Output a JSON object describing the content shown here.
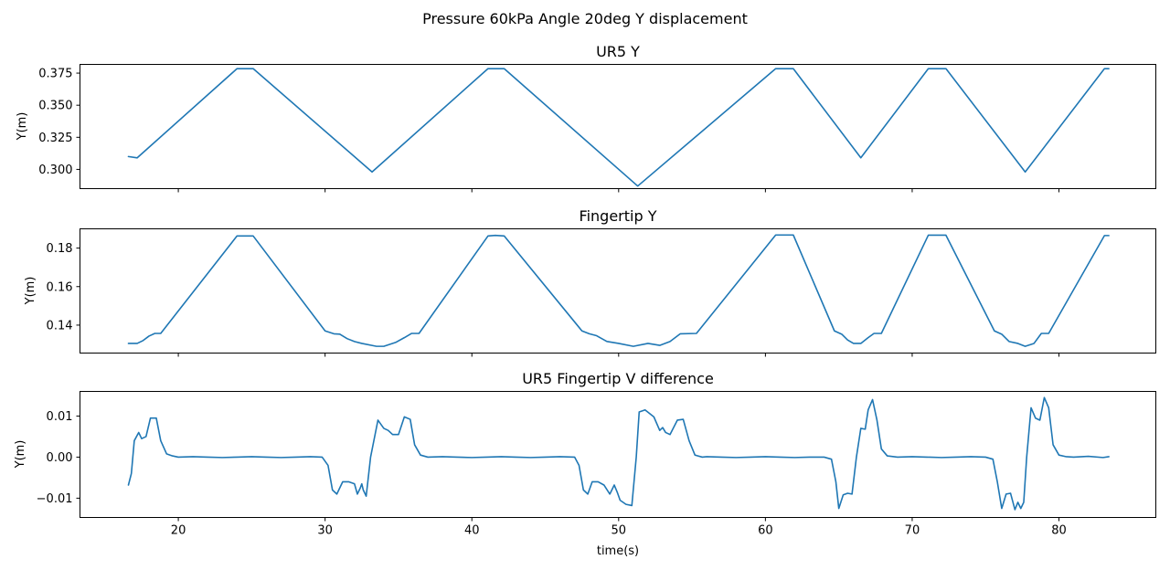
{
  "figure": {
    "title": "Pressure 60kPa Angle 20deg Y displacement",
    "xlabel": "time(s)",
    "x_ticks": [
      20,
      30,
      40,
      50,
      60,
      70,
      80
    ],
    "x_range": [
      13.3,
      86.6
    ],
    "shared_x": true,
    "grid": false,
    "line_color": "#1f77b4"
  },
  "chart_data": [
    {
      "type": "line",
      "title": "UR5 Y",
      "xlabel": "",
      "ylabel": "Y(m)",
      "ylim": [
        0.285,
        0.3818
      ],
      "yticks": [
        0.3,
        0.325,
        0.35,
        0.375
      ],
      "ytick_labels": [
        "0.300",
        "0.325",
        "0.350",
        "0.375"
      ],
      "series": [
        {
          "color": "#1f77b4",
          "x": [
            16.6,
            17.2,
            24.0,
            25.1,
            33.2,
            41.1,
            42.2,
            51.3,
            60.7,
            61.9,
            66.5,
            71.1,
            72.3,
            77.7,
            83.1,
            83.4
          ],
          "y": [
            0.31,
            0.309,
            0.3785,
            0.3785,
            0.298,
            0.3785,
            0.3785,
            0.287,
            0.3785,
            0.3785,
            0.309,
            0.3785,
            0.3785,
            0.298,
            0.3785,
            0.3785
          ]
        }
      ]
    },
    {
      "type": "line",
      "title": "Fingertip Y",
      "xlabel": "",
      "ylabel": "Y(m)",
      "ylim": [
        0.1255,
        0.19
      ],
      "yticks": [
        0.14,
        0.16,
        0.18
      ],
      "ytick_labels": [
        "0.14",
        "0.16",
        "0.18"
      ],
      "series": [
        {
          "color": "#1f77b4",
          "x": [
            16.6,
            17.2,
            17.6,
            18.0,
            18.4,
            18.8,
            24.0,
            25.1,
            30.0,
            30.6,
            31.0,
            31.5,
            32.0,
            32.5,
            33.5,
            34.0,
            34.8,
            35.4,
            35.9,
            36.4,
            41.1,
            41.6,
            42.2,
            47.5,
            48.0,
            48.5,
            49.2,
            50.0,
            51.0,
            52.0,
            52.8,
            53.5,
            54.2,
            55.3,
            60.7,
            61.9,
            64.7,
            65.2,
            65.6,
            66.0,
            66.5,
            67.0,
            67.4,
            67.9,
            71.1,
            72.3,
            75.6,
            76.1,
            76.6,
            77.2,
            77.7,
            78.3,
            78.8,
            79.3,
            83.1,
            83.4
          ],
          "y": [
            0.1305,
            0.1305,
            0.132,
            0.1343,
            0.1357,
            0.1357,
            0.1863,
            0.1863,
            0.137,
            0.1355,
            0.1353,
            0.133,
            0.1315,
            0.1305,
            0.129,
            0.129,
            0.131,
            0.1335,
            0.1357,
            0.1357,
            0.1863,
            0.1866,
            0.1863,
            0.137,
            0.1355,
            0.1345,
            0.1315,
            0.1305,
            0.129,
            0.1305,
            0.1295,
            0.1315,
            0.1355,
            0.1357,
            0.1868,
            0.1868,
            0.137,
            0.1353,
            0.1323,
            0.1305,
            0.1305,
            0.1335,
            0.1357,
            0.1357,
            0.1867,
            0.1867,
            0.137,
            0.1353,
            0.1315,
            0.1305,
            0.129,
            0.1305,
            0.1357,
            0.1357,
            0.1865,
            0.1865
          ]
        }
      ]
    },
    {
      "type": "line",
      "title": "UR5 Fingertip V difference",
      "xlabel": "time(s)",
      "ylabel": "Y(m)",
      "ylim": [
        -0.0147,
        0.016
      ],
      "yticks": [
        -0.01,
        0.0,
        0.01
      ],
      "ytick_labels": [
        "−0.01",
        "0.00",
        "0.01"
      ],
      "series": [
        {
          "color": "#1f77b4",
          "x": [
            16.6,
            16.8,
            17.0,
            17.3,
            17.5,
            17.8,
            18.1,
            18.5,
            18.8,
            19.2,
            19.6,
            20,
            21,
            22,
            23,
            24,
            25,
            26,
            27,
            28,
            29,
            29.8,
            30.2,
            30.5,
            30.8,
            31.2,
            31.6,
            32.0,
            32.2,
            32.4,
            32.5,
            32.6,
            32.8,
            33.1,
            33.6,
            34.0,
            34.3,
            34.6,
            35.0,
            35.4,
            35.8,
            36.1,
            36.5,
            37,
            38,
            39,
            40,
            41,
            42,
            43,
            44,
            45,
            46,
            47,
            47.3,
            47.6,
            47.9,
            48.2,
            48.6,
            49.0,
            49.4,
            49.7,
            49.9,
            50.1,
            50.5,
            50.9,
            51.2,
            51.4,
            51.8,
            52.4,
            52.8,
            53.0,
            53.2,
            53.5,
            54.0,
            54.4,
            54.8,
            55.2,
            55.7,
            56,
            57,
            58,
            59,
            60,
            61,
            62,
            63,
            64,
            64.5,
            64.8,
            65.0,
            65.3,
            65.6,
            65.9,
            66.2,
            66.5,
            66.8,
            67.0,
            67.3,
            67.6,
            67.9,
            68.3,
            69,
            70,
            71,
            72,
            73,
            74,
            75,
            75.5,
            75.8,
            76.1,
            76.4,
            76.7,
            77.0,
            77.2,
            77.4,
            77.6,
            77.8,
            78.1,
            78.4,
            78.7,
            79.0,
            79.3,
            79.6,
            80.0,
            80.5,
            81,
            82,
            83,
            83.4
          ],
          "y": [
            -0.0068,
            -0.004,
            0.004,
            0.006,
            0.0045,
            0.005,
            0.0095,
            0.0095,
            0.004,
            0.0008,
            0.0003,
            0.0,
            0.0001,
            0.0,
            -0.0001,
            0.0,
            0.0001,
            0.0,
            -0.0001,
            0.0,
            0.0001,
            0.0,
            -0.002,
            -0.008,
            -0.009,
            -0.006,
            -0.006,
            -0.0065,
            -0.009,
            -0.0075,
            -0.0065,
            -0.008,
            -0.0095,
            0.0,
            0.009,
            0.007,
            0.0065,
            0.0055,
            0.0055,
            0.0098,
            0.0092,
            0.003,
            0.0005,
            0.0,
            0.0001,
            0.0,
            -0.0001,
            0.0,
            0.0001,
            0.0,
            -0.0001,
            0.0,
            0.0001,
            0.0,
            -0.002,
            -0.008,
            -0.009,
            -0.006,
            -0.006,
            -0.0068,
            -0.009,
            -0.0068,
            -0.0085,
            -0.0105,
            -0.0115,
            -0.0118,
            0.0,
            0.011,
            0.0115,
            0.0098,
            0.0065,
            0.0072,
            0.006,
            0.0055,
            0.009,
            0.0092,
            0.004,
            0.0005,
            0.0,
            0.0001,
            0.0,
            -0.0001,
            0.0,
            0.0001,
            0.0,
            -0.0001,
            0.0,
            0.0,
            -0.0005,
            -0.006,
            -0.0125,
            -0.0092,
            -0.0088,
            -0.009,
            0.0,
            0.007,
            0.0068,
            0.0115,
            0.014,
            0.009,
            0.002,
            0.0003,
            0.0,
            0.0001,
            0.0,
            -0.0001,
            0.0,
            0.0001,
            0.0,
            -0.0005,
            -0.006,
            -0.0125,
            -0.009,
            -0.0088,
            -0.0128,
            -0.011,
            -0.0125,
            -0.011,
            0.0,
            0.012,
            0.0095,
            0.009,
            0.0145,
            0.012,
            0.003,
            0.0005,
            0.0001,
            0.0,
            0.0002,
            -0.0001,
            0.0001
          ]
        }
      ]
    }
  ]
}
